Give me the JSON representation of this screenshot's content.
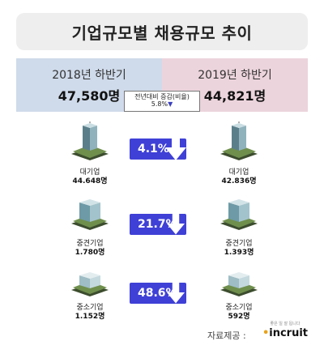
{
  "title": "기업규모별 채용규모 추이",
  "chart_data": {
    "type": "table",
    "periods": [
      {
        "label": "2018년 하반기",
        "total": "47,580명",
        "value": 47580
      },
      {
        "label": "2019년 하반기",
        "total": "44,821명",
        "value": 44821
      }
    ],
    "yoy": {
      "label": "전년대비 증감(비율)",
      "value": "5.8%",
      "direction": "down"
    },
    "categories": [
      "대기업",
      "중견기업",
      "중소기업"
    ],
    "rows": [
      {
        "name": "대기업",
        "v2018": "44.648명",
        "v2019": "42.836명",
        "change": "4.1%",
        "direction": "down",
        "icon": "tall-skyscraper-icon"
      },
      {
        "name": "중견기업",
        "v2018": "1.780명",
        "v2019": "1.393명",
        "change": "21.7%",
        "direction": "down",
        "icon": "mid-building-icon"
      },
      {
        "name": "중소기업",
        "v2018": "1.152명",
        "v2019": "592명",
        "change": "48.6%",
        "direction": "down",
        "icon": "small-building-icon"
      }
    ],
    "colors": {
      "left_header": "#cfdaea",
      "right_header": "#ecd4dc",
      "badge": "#3f40d6"
    }
  },
  "footer": {
    "source_label": "자료제공 :",
    "logo_tagline": "좋은 일 잘 됩니다",
    "logo_text": "incruit"
  }
}
